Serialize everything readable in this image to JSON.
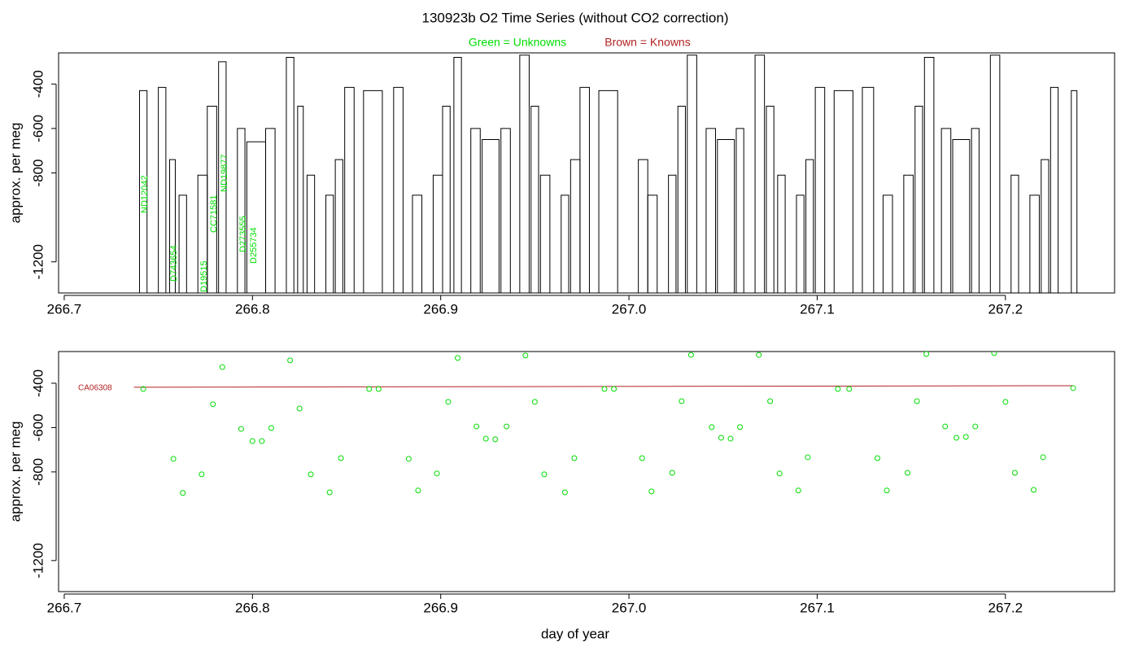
{
  "chart_data": [
    {
      "type": "plateau",
      "title": "130923b   O2 Time Series (without CO2 correction)",
      "legend_items": [
        {
          "text": "Green = Unknowns",
          "color": "#00dd00"
        },
        {
          "text": "Brown = Knowns",
          "color": "#b22222"
        }
      ],
      "ylabel": "approx. per meg",
      "color": "#000000",
      "annotations": [
        "ND12042",
        "D743654",
        "D19515",
        "CC71581",
        "ND19877",
        "D273555",
        "D255734"
      ],
      "annotation_color": "#00dd00",
      "x_start": [
        266.74,
        266.75,
        266.756,
        266.761,
        266.771,
        266.776,
        266.782,
        266.792,
        266.797,
        266.807,
        266.818,
        266.824,
        266.829,
        266.839,
        266.844,
        266.849,
        266.859,
        266.875,
        266.885,
        266.896,
        266.901,
        266.907,
        266.916,
        266.922,
        266.932,
        266.942,
        266.948,
        266.953,
        266.964,
        266.969,
        266.974,
        266.984,
        267.005,
        267.01,
        267.021,
        267.026,
        267.031,
        267.041,
        267.047,
        267.057,
        267.067,
        267.073,
        267.079,
        267.089,
        267.094,
        267.099,
        267.109,
        267.124,
        267.135,
        267.146,
        267.152,
        267.157,
        267.166,
        267.172,
        267.182,
        267.192,
        267.203,
        267.213,
        267.219,
        267.224,
        267.235
      ],
      "x_end": [
        266.744,
        266.754,
        266.759,
        266.765,
        266.776,
        266.781,
        266.786,
        266.796,
        266.807,
        266.812,
        266.822,
        266.827,
        266.833,
        266.843,
        266.848,
        266.854,
        266.869,
        266.88,
        266.89,
        266.901,
        266.905,
        266.911,
        266.921,
        266.931,
        266.937,
        266.947,
        266.952,
        266.958,
        266.968,
        266.974,
        266.979,
        266.994,
        267.01,
        267.015,
        267.025,
        267.03,
        267.036,
        267.046,
        267.056,
        267.061,
        267.072,
        267.077,
        267.083,
        267.093,
        267.098,
        267.104,
        267.119,
        267.13,
        267.14,
        267.151,
        267.156,
        267.162,
        267.171,
        267.181,
        267.186,
        267.197,
        267.207,
        267.218,
        267.223,
        267.228,
        267.238
      ],
      "values": [
        -430,
        -415,
        -740,
        -900,
        -810,
        -500,
        -300,
        -600,
        -660,
        -600,
        -280,
        -500,
        -810,
        -900,
        -740,
        -415,
        -430,
        -415,
        -900,
        -810,
        -500,
        -280,
        -600,
        -650,
        -600,
        -270,
        -500,
        -810,
        -900,
        -740,
        -415,
        -430,
        -740,
        -900,
        -810,
        -500,
        -270,
        -600,
        -650,
        -600,
        -270,
        -500,
        -810,
        -900,
        -740,
        -415,
        -430,
        -415,
        -900,
        -810,
        -500,
        -280,
        -600,
        -650,
        -600,
        -270,
        -810,
        -900,
        -740,
        -415,
        -430
      ],
      "floor": -1340,
      "xlim": [
        266.697,
        267.258
      ],
      "ylim": [
        -1340,
        -260
      ],
      "xticks": [
        266.7,
        266.8,
        266.9,
        {
          "value": 267,
          "label": "267.0"
        },
        267.1,
        267.2
      ],
      "yticks": [
        -400,
        -600,
        -800,
        -1200
      ]
    },
    {
      "type": "scatter",
      "ylabel": "approx. per meg",
      "xlabel": "day of year",
      "color": "#00dd00",
      "x": [
        266.742,
        266.758,
        266.763,
        266.773,
        266.779,
        266.784,
        266.794,
        266.8,
        266.805,
        266.81,
        266.82,
        266.825,
        266.831,
        266.841,
        266.847,
        266.862,
        266.867,
        266.883,
        266.888,
        266.898,
        266.904,
        266.909,
        266.919,
        266.924,
        266.929,
        266.935,
        266.945,
        266.95,
        266.955,
        266.966,
        266.971,
        266.987,
        266.992,
        267.007,
        267.012,
        267.023,
        267.028,
        267.033,
        267.044,
        267.049,
        267.054,
        267.059,
        267.069,
        267.075,
        267.08,
        267.09,
        267.095,
        267.111,
        267.117,
        267.132,
        267.137,
        267.148,
        267.153,
        267.158,
        267.168,
        267.174,
        267.179,
        267.184,
        267.194,
        267.2,
        267.205,
        267.215,
        267.22,
        267.236
      ],
      "values": [
        -426,
        -741,
        -895,
        -811,
        -495,
        -327,
        -606,
        -661,
        -661,
        -602,
        -297,
        -514,
        -811,
        -892,
        -738,
        -426,
        -426,
        -741,
        -884,
        -807,
        -484,
        -286,
        -595,
        -650,
        -653,
        -595,
        -275,
        -484,
        -811,
        -892,
        -738,
        -426,
        -426,
        -738,
        -888,
        -804,
        -481,
        -272,
        -598,
        -646,
        -650,
        -598,
        -272,
        -481,
        -807,
        -884,
        -734,
        -426,
        -426,
        -738,
        -884,
        -804,
        -481,
        -268,
        -595,
        -646,
        -642,
        -595,
        -264,
        -484,
        -804,
        -881,
        -734,
        -422
      ],
      "reference": {
        "name": "CA06308",
        "color": "#b22222",
        "x": [
          266.737,
          267.236
        ],
        "values": [
          -418,
          -411
        ]
      },
      "xlim": [
        266.697,
        267.258
      ],
      "ylim": [
        -1340,
        -257
      ],
      "xticks": [
        266.7,
        266.8,
        266.9,
        {
          "value": 267,
          "label": "267.0"
        },
        267.1,
        267.2
      ],
      "yticks": [
        -400,
        -600,
        -800,
        -1200
      ]
    }
  ]
}
